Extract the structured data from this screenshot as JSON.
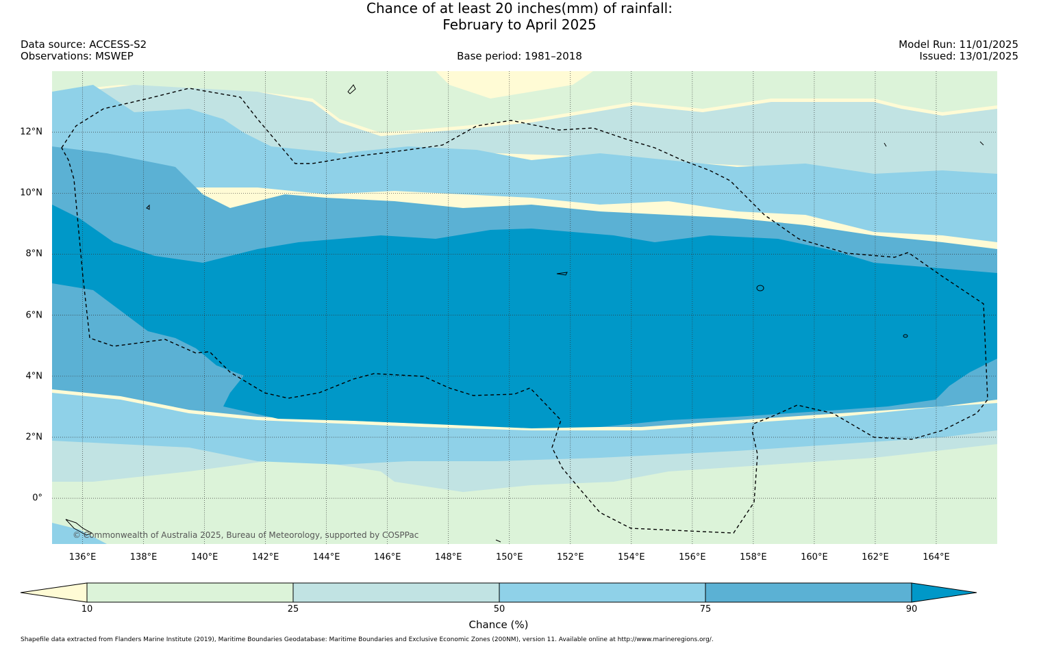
{
  "title": {
    "line1": "Chance of at least 20 inches(mm) of rainfall:",
    "line2": "February to April 2025"
  },
  "meta": {
    "data_source": "Data source: ACCESS-S2",
    "observations": "Observations: MSWEP",
    "base_period": "Base period: 1981–2018",
    "model_run": "Model Run: 11/01/2025",
    "issued": "Issued: 13/01/2025"
  },
  "map": {
    "lon_range": [
      135.0,
      166.0
    ],
    "lat_range": [
      -1.5,
      14.0
    ],
    "lon_ticks": [
      "136°E",
      "138°E",
      "140°E",
      "142°E",
      "144°E",
      "146°E",
      "148°E",
      "150°E",
      "152°E",
      "154°E",
      "156°E",
      "158°E",
      "160°E",
      "162°E",
      "164°E"
    ],
    "lat_ticks": [
      "12°N",
      "10°N",
      "8°N",
      "6°N",
      "4°N",
      "2°N",
      "0°"
    ],
    "credit": "© Commonwealth of Australia 2025, Bureau of Meteorology, supported by COSPPac",
    "colors": {
      "lt10": "#fffbd5",
      "10-25": "#dcf3d9",
      "25-50": "#c1e3e3",
      "50-75": "#8fd1e8",
      "75-90": "#5bb1d4",
      "gt90": "#0098c8"
    }
  },
  "colorbar": {
    "title": "Chance (%)",
    "labels": [
      "10",
      "25",
      "50",
      "75",
      "90"
    ],
    "colors": [
      "#fffbd5",
      "#dcf3d9",
      "#c1e3e3",
      "#8fd1e8",
      "#5bb1d4",
      "#0098c8"
    ]
  },
  "footnote": "Shapefile data extracted from Flanders Marine Institute (2019), Maritime Boundaries Geodatabase: Maritime Boundaries and Exclusive Economic Zones (200NM), version 11. Available online at http://www.marineregions.org/."
}
